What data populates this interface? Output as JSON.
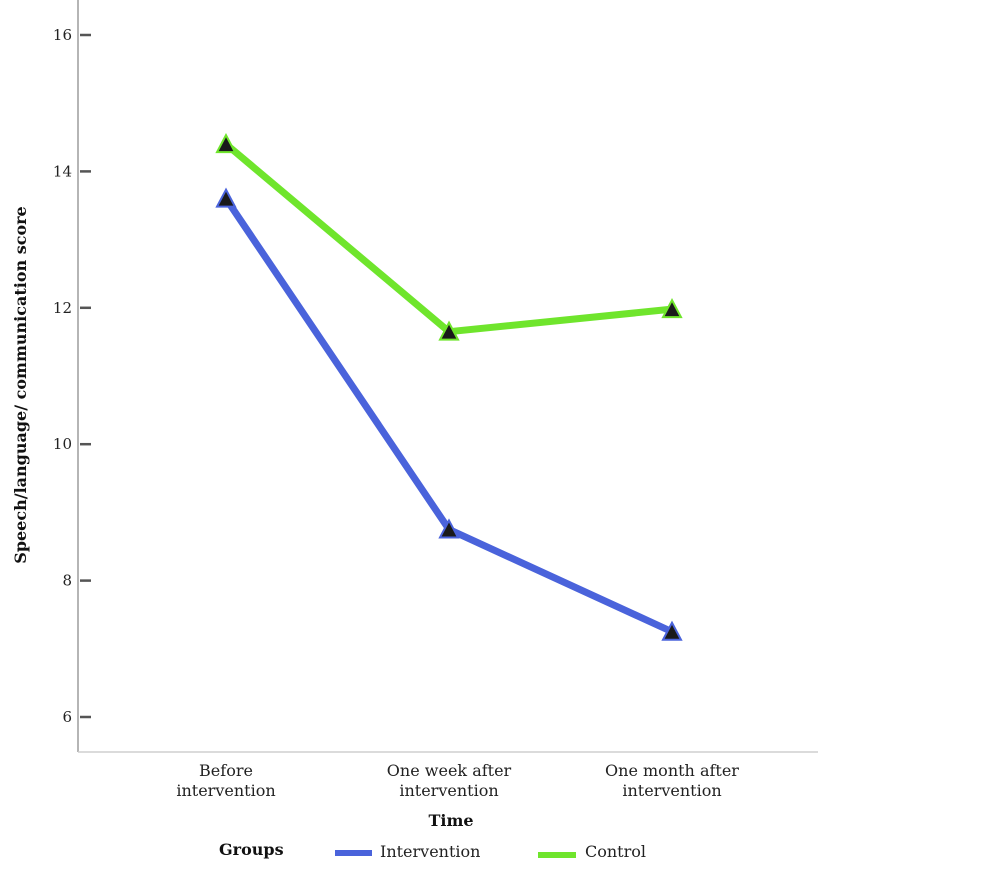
{
  "chart_data": {
    "type": "line",
    "categories": [
      "Before\nintervention",
      "One week after\nintervention",
      "One month after\nintervention"
    ],
    "series": [
      {
        "name": "Intervention",
        "values": [
          13.6,
          8.75,
          7.25
        ],
        "color": "#4a63db"
      },
      {
        "name": "Control",
        "values": [
          14.4,
          11.65,
          11.98
        ],
        "color": "#6fe52c"
      }
    ],
    "xlabel": "Time",
    "ylabel": "Speech/language/ communication score",
    "ylim": [
      5.5,
      16.5
    ],
    "yticks": [
      6,
      8,
      10,
      12,
      14,
      16
    ],
    "marker": "triangle",
    "grid": false,
    "legend_title": "Groups",
    "legend_position": "bottom"
  }
}
